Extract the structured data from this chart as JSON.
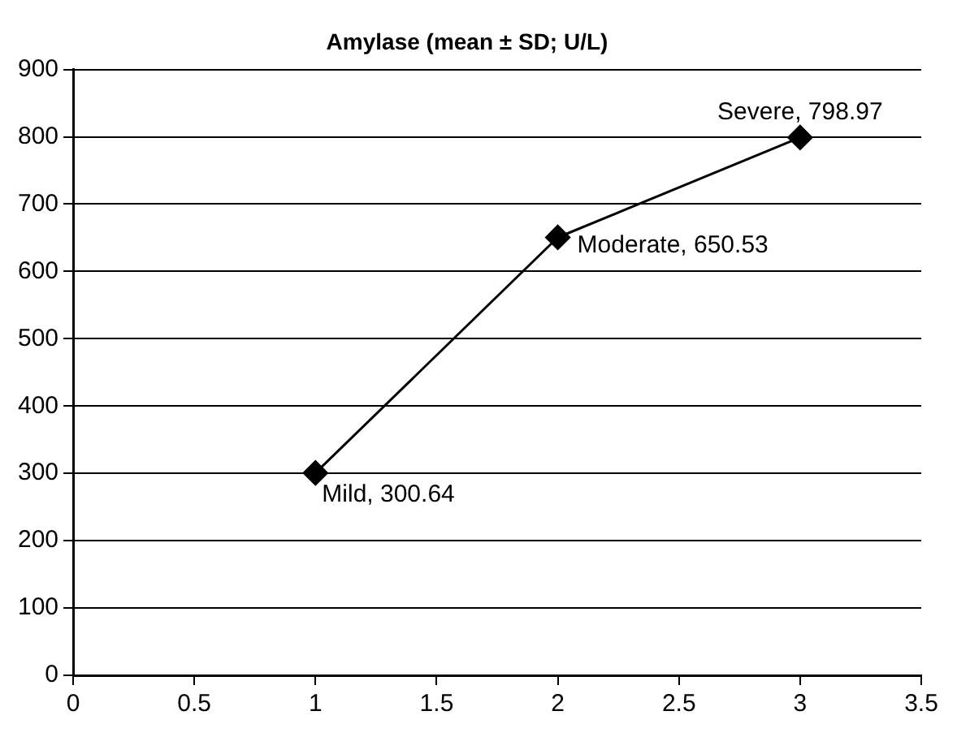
{
  "chart_data": {
    "type": "line",
    "title": "Amylase (mean ± SD; U/L)",
    "x": [
      1,
      2,
      3
    ],
    "series": [
      {
        "color": "#000000",
        "values": [
          300.64,
          650.53,
          798.97
        ]
      }
    ],
    "xlim": [
      0,
      3.5
    ],
    "xticks": [
      0,
      0.5,
      1,
      1.5,
      2,
      2.5,
      3,
      3.5
    ],
    "ylim": [
      0,
      900
    ],
    "yticks": [
      0,
      100,
      200,
      300,
      400,
      500,
      600,
      700,
      800,
      900
    ],
    "grid": "y",
    "legend": false,
    "marker": "diamond",
    "line_style": "solid",
    "annotations": [
      {
        "text": "Mild, 300.64",
        "x": 1,
        "y": 300.64
      },
      {
        "text": "Moderate, 650.53",
        "x": 2,
        "y": 650.53
      },
      {
        "text": "Severe, 798.97",
        "x": 3,
        "y": 798.97
      }
    ]
  }
}
